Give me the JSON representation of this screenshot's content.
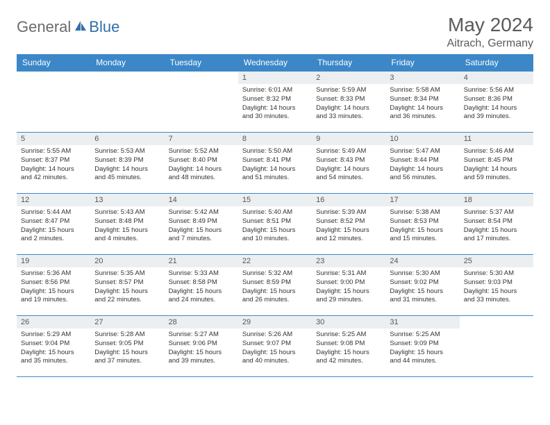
{
  "logo": {
    "general": "General",
    "blue": "Blue"
  },
  "title": "May 2024",
  "location": "Aitrach, Germany",
  "colors": {
    "header_bg": "#3b87c8",
    "header_text": "#ffffff",
    "daynum_bg": "#eceff1",
    "border": "#3b87c8",
    "title_color": "#5a5a5a",
    "logo_gray": "#6b6b6b",
    "logo_blue": "#2f6fa8"
  },
  "weekdays": [
    "Sunday",
    "Monday",
    "Tuesday",
    "Wednesday",
    "Thursday",
    "Friday",
    "Saturday"
  ],
  "weeks": [
    [
      null,
      null,
      null,
      {
        "n": "1",
        "sr": "Sunrise: 6:01 AM",
        "ss": "Sunset: 8:32 PM",
        "dl": "Daylight: 14 hours and 30 minutes."
      },
      {
        "n": "2",
        "sr": "Sunrise: 5:59 AM",
        "ss": "Sunset: 8:33 PM",
        "dl": "Daylight: 14 hours and 33 minutes."
      },
      {
        "n": "3",
        "sr": "Sunrise: 5:58 AM",
        "ss": "Sunset: 8:34 PM",
        "dl": "Daylight: 14 hours and 36 minutes."
      },
      {
        "n": "4",
        "sr": "Sunrise: 5:56 AM",
        "ss": "Sunset: 8:36 PM",
        "dl": "Daylight: 14 hours and 39 minutes."
      }
    ],
    [
      {
        "n": "5",
        "sr": "Sunrise: 5:55 AM",
        "ss": "Sunset: 8:37 PM",
        "dl": "Daylight: 14 hours and 42 minutes."
      },
      {
        "n": "6",
        "sr": "Sunrise: 5:53 AM",
        "ss": "Sunset: 8:39 PM",
        "dl": "Daylight: 14 hours and 45 minutes."
      },
      {
        "n": "7",
        "sr": "Sunrise: 5:52 AM",
        "ss": "Sunset: 8:40 PM",
        "dl": "Daylight: 14 hours and 48 minutes."
      },
      {
        "n": "8",
        "sr": "Sunrise: 5:50 AM",
        "ss": "Sunset: 8:41 PM",
        "dl": "Daylight: 14 hours and 51 minutes."
      },
      {
        "n": "9",
        "sr": "Sunrise: 5:49 AM",
        "ss": "Sunset: 8:43 PM",
        "dl": "Daylight: 14 hours and 54 minutes."
      },
      {
        "n": "10",
        "sr": "Sunrise: 5:47 AM",
        "ss": "Sunset: 8:44 PM",
        "dl": "Daylight: 14 hours and 56 minutes."
      },
      {
        "n": "11",
        "sr": "Sunrise: 5:46 AM",
        "ss": "Sunset: 8:45 PM",
        "dl": "Daylight: 14 hours and 59 minutes."
      }
    ],
    [
      {
        "n": "12",
        "sr": "Sunrise: 5:44 AM",
        "ss": "Sunset: 8:47 PM",
        "dl": "Daylight: 15 hours and 2 minutes."
      },
      {
        "n": "13",
        "sr": "Sunrise: 5:43 AM",
        "ss": "Sunset: 8:48 PM",
        "dl": "Daylight: 15 hours and 4 minutes."
      },
      {
        "n": "14",
        "sr": "Sunrise: 5:42 AM",
        "ss": "Sunset: 8:49 PM",
        "dl": "Daylight: 15 hours and 7 minutes."
      },
      {
        "n": "15",
        "sr": "Sunrise: 5:40 AM",
        "ss": "Sunset: 8:51 PM",
        "dl": "Daylight: 15 hours and 10 minutes."
      },
      {
        "n": "16",
        "sr": "Sunrise: 5:39 AM",
        "ss": "Sunset: 8:52 PM",
        "dl": "Daylight: 15 hours and 12 minutes."
      },
      {
        "n": "17",
        "sr": "Sunrise: 5:38 AM",
        "ss": "Sunset: 8:53 PM",
        "dl": "Daylight: 15 hours and 15 minutes."
      },
      {
        "n": "18",
        "sr": "Sunrise: 5:37 AM",
        "ss": "Sunset: 8:54 PM",
        "dl": "Daylight: 15 hours and 17 minutes."
      }
    ],
    [
      {
        "n": "19",
        "sr": "Sunrise: 5:36 AM",
        "ss": "Sunset: 8:56 PM",
        "dl": "Daylight: 15 hours and 19 minutes."
      },
      {
        "n": "20",
        "sr": "Sunrise: 5:35 AM",
        "ss": "Sunset: 8:57 PM",
        "dl": "Daylight: 15 hours and 22 minutes."
      },
      {
        "n": "21",
        "sr": "Sunrise: 5:33 AM",
        "ss": "Sunset: 8:58 PM",
        "dl": "Daylight: 15 hours and 24 minutes."
      },
      {
        "n": "22",
        "sr": "Sunrise: 5:32 AM",
        "ss": "Sunset: 8:59 PM",
        "dl": "Daylight: 15 hours and 26 minutes."
      },
      {
        "n": "23",
        "sr": "Sunrise: 5:31 AM",
        "ss": "Sunset: 9:00 PM",
        "dl": "Daylight: 15 hours and 29 minutes."
      },
      {
        "n": "24",
        "sr": "Sunrise: 5:30 AM",
        "ss": "Sunset: 9:02 PM",
        "dl": "Daylight: 15 hours and 31 minutes."
      },
      {
        "n": "25",
        "sr": "Sunrise: 5:30 AM",
        "ss": "Sunset: 9:03 PM",
        "dl": "Daylight: 15 hours and 33 minutes."
      }
    ],
    [
      {
        "n": "26",
        "sr": "Sunrise: 5:29 AM",
        "ss": "Sunset: 9:04 PM",
        "dl": "Daylight: 15 hours and 35 minutes."
      },
      {
        "n": "27",
        "sr": "Sunrise: 5:28 AM",
        "ss": "Sunset: 9:05 PM",
        "dl": "Daylight: 15 hours and 37 minutes."
      },
      {
        "n": "28",
        "sr": "Sunrise: 5:27 AM",
        "ss": "Sunset: 9:06 PM",
        "dl": "Daylight: 15 hours and 39 minutes."
      },
      {
        "n": "29",
        "sr": "Sunrise: 5:26 AM",
        "ss": "Sunset: 9:07 PM",
        "dl": "Daylight: 15 hours and 40 minutes."
      },
      {
        "n": "30",
        "sr": "Sunrise: 5:25 AM",
        "ss": "Sunset: 9:08 PM",
        "dl": "Daylight: 15 hours and 42 minutes."
      },
      {
        "n": "31",
        "sr": "Sunrise: 5:25 AM",
        "ss": "Sunset: 9:09 PM",
        "dl": "Daylight: 15 hours and 44 minutes."
      },
      null
    ]
  ]
}
